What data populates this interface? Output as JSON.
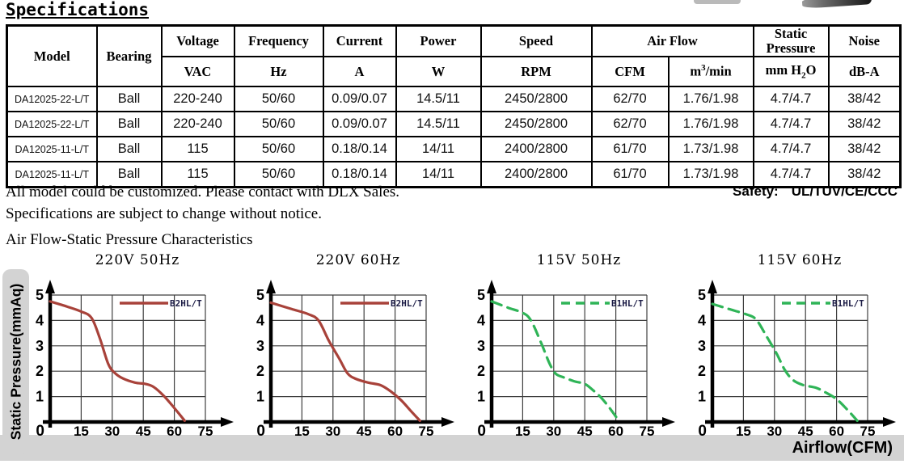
{
  "page": {
    "title": "Specifications",
    "notes_line1": "All model could be customized. Please contact with DLX Sales.",
    "notes_line2": "Specifications are subject to change without notice.",
    "safety_label": "Safety:",
    "safety_value": "UL/TUV/CE/CCC",
    "section_title": "Air Flow-Static Pressure Characteristics"
  },
  "table": {
    "header": {
      "model": "Model",
      "bearing": "Bearing",
      "voltage": "Voltage",
      "voltage_unit": "VAC",
      "frequency": "Frequency",
      "frequency_unit": "Hz",
      "current": "Current",
      "current_unit": "A",
      "power": "Power",
      "power_unit": "W",
      "speed": "Speed",
      "speed_unit": "RPM",
      "airflow": "Air Flow",
      "airflow_unit_cfm": "CFM",
      "airflow_unit_m3_base": "m",
      "airflow_unit_m3_sup": "3",
      "airflow_unit_m3_rest": "/min",
      "static_pressure_line1": "Static",
      "static_pressure_line2": "Pressure",
      "sp_unit_pre": "mm H",
      "sp_unit_sub": "2",
      "sp_unit_post": "O",
      "noise": "Noise",
      "noise_unit": "dB-A"
    },
    "rows": [
      [
        "DA12025-22-L/T",
        "Ball",
        "220-240",
        "50/60",
        "0.09/0.07",
        "14.5/11",
        "2450/2800",
        "62/70",
        "1.76/1.98",
        "4.7/4.7",
        "38/42"
      ],
      [
        "DA12025-22-L/T",
        "Ball",
        "220-240",
        "50/60",
        "0.09/0.07",
        "14.5/11",
        "2450/2800",
        "62/70",
        "1.76/1.98",
        "4.7/4.7",
        "38/42"
      ],
      [
        "DA12025-11-L/T",
        "Ball",
        "115",
        "50/60",
        "0.18/0.14",
        "14/11",
        "2400/2800",
        "61/70",
        "1.73/1.98",
        "4.7/4.7",
        "38/42"
      ],
      [
        "DA12025-11-L/T",
        "Ball",
        "115",
        "50/60",
        "0.18/0.14",
        "14/11",
        "2400/2800",
        "61/70",
        "1.73/1.98",
        "4.7/4.7",
        "38/42"
      ]
    ]
  },
  "charts_shared": {
    "y_axis_label": "Static Pressure(mmAq)",
    "x_axis_label": "Airflow(CFM)",
    "strip_color": "#d3d3d3",
    "grid_color": "#3f3f3f",
    "legend_text_color": "#1b1b45"
  },
  "chart_data": [
    {
      "type": "line",
      "title": "220V 50Hz",
      "legend": "B2HL/T",
      "color": "#a8423a",
      "line_style": "solid",
      "xlabel": "Airflow(CFM)",
      "ylabel": "Static Pressure(mmAq)",
      "xlim": [
        0,
        75
      ],
      "ylim": [
        0,
        5
      ],
      "x_ticks": [
        0,
        15,
        30,
        45,
        60,
        75
      ],
      "y_ticks": [
        0,
        1,
        2,
        3,
        4,
        5
      ],
      "points": [
        [
          0,
          4.75
        ],
        [
          8,
          4.55
        ],
        [
          15,
          4.35
        ],
        [
          20,
          4.1
        ],
        [
          24,
          3.3
        ],
        [
          28,
          2.3
        ],
        [
          31,
          1.95
        ],
        [
          35,
          1.72
        ],
        [
          41,
          1.55
        ],
        [
          46,
          1.5
        ],
        [
          50,
          1.38
        ],
        [
          55,
          1.02
        ],
        [
          60,
          0.55
        ],
        [
          65,
          0.05
        ]
      ]
    },
    {
      "type": "line",
      "title": "220V 60Hz",
      "legend": "B2HL/T",
      "color": "#a8423a",
      "line_style": "solid",
      "xlabel": "Airflow(CFM)",
      "ylabel": "Static Pressure(mmAq)",
      "xlim": [
        0,
        75
      ],
      "ylim": [
        0,
        5
      ],
      "x_ticks": [
        0,
        15,
        30,
        45,
        60,
        75
      ],
      "y_ticks": [
        0,
        1,
        2,
        3,
        4,
        5
      ],
      "points": [
        [
          0,
          4.7
        ],
        [
          10,
          4.45
        ],
        [
          18,
          4.25
        ],
        [
          23,
          4.0
        ],
        [
          28,
          3.2
        ],
        [
          33,
          2.5
        ],
        [
          37,
          1.92
        ],
        [
          41,
          1.7
        ],
        [
          47,
          1.55
        ],
        [
          53,
          1.45
        ],
        [
          58,
          1.2
        ],
        [
          63,
          0.85
        ],
        [
          68,
          0.4
        ],
        [
          72,
          0.05
        ]
      ]
    },
    {
      "type": "line",
      "title": "115V 50Hz",
      "legend": "B1HL/T",
      "color": "#2fb457",
      "line_style": "dashed",
      "xlabel": "Airflow(CFM)",
      "ylabel": "Static Pressure(mmAq)",
      "xlim": [
        0,
        75
      ],
      "ylim": [
        0,
        5
      ],
      "x_ticks": [
        0,
        15,
        30,
        45,
        60,
        75
      ],
      "y_ticks": [
        0,
        1,
        2,
        3,
        4,
        5
      ],
      "points": [
        [
          0,
          4.75
        ],
        [
          8,
          4.5
        ],
        [
          15,
          4.3
        ],
        [
          19,
          4.0
        ],
        [
          24,
          3.1
        ],
        [
          28,
          2.3
        ],
        [
          31,
          1.9
        ],
        [
          35,
          1.75
        ],
        [
          40,
          1.6
        ],
        [
          45,
          1.5
        ],
        [
          49,
          1.25
        ],
        [
          53,
          0.95
        ],
        [
          57,
          0.55
        ],
        [
          61,
          0.1
        ]
      ]
    },
    {
      "type": "line",
      "title": "115V 60Hz",
      "legend": "B1HL/T",
      "color": "#2fb457",
      "line_style": "dashed",
      "xlabel": "Airflow(CFM)",
      "ylabel": "Static Pressure(mmAq)",
      "xlim": [
        0,
        75
      ],
      "ylim": [
        0,
        5
      ],
      "x_ticks": [
        0,
        15,
        30,
        45,
        60,
        75
      ],
      "y_ticks": [
        0,
        1,
        2,
        3,
        4,
        5
      ],
      "points": [
        [
          0,
          4.65
        ],
        [
          8,
          4.45
        ],
        [
          16,
          4.25
        ],
        [
          21,
          4.05
        ],
        [
          26,
          3.4
        ],
        [
          31,
          2.7
        ],
        [
          35,
          2.05
        ],
        [
          39,
          1.65
        ],
        [
          44,
          1.45
        ],
        [
          50,
          1.35
        ],
        [
          55,
          1.15
        ],
        [
          60,
          0.9
        ],
        [
          65,
          0.5
        ],
        [
          70,
          0.05
        ]
      ]
    }
  ]
}
